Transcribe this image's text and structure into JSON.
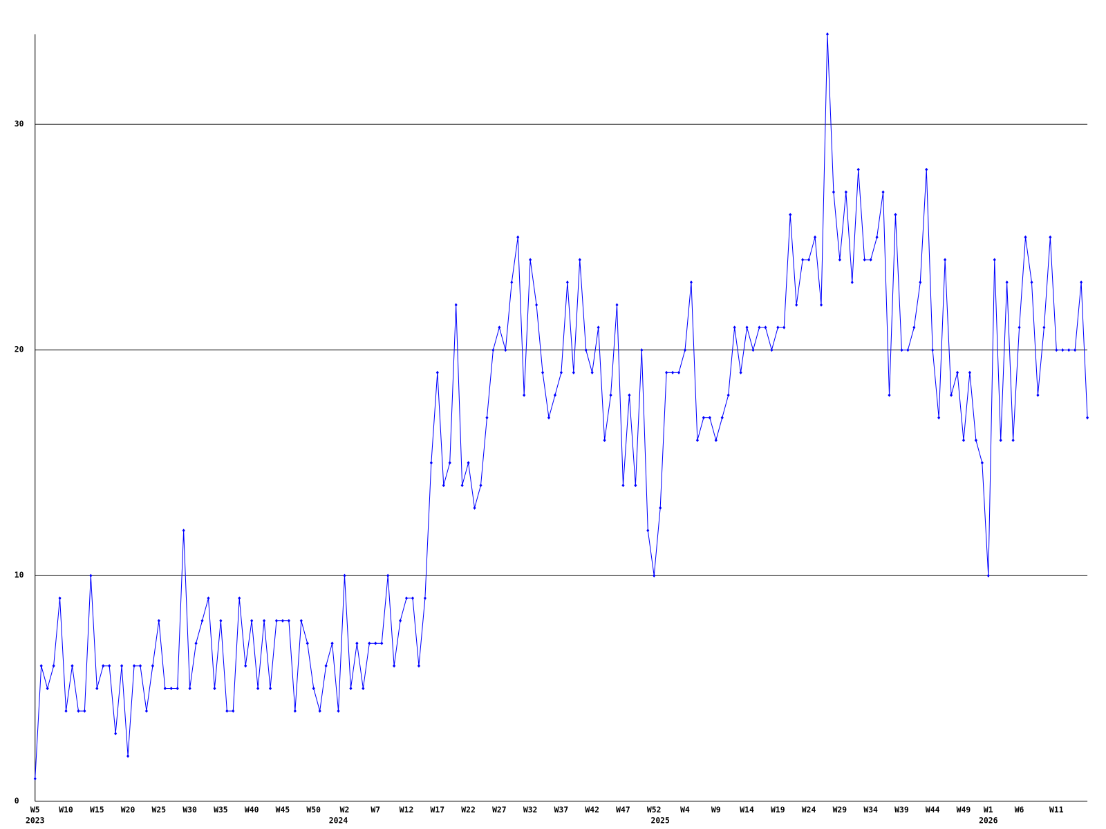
{
  "chart_data": {
    "type": "line",
    "categories": [
      "W5",
      null,
      null,
      null,
      null,
      "W10",
      null,
      null,
      null,
      null,
      "W15",
      null,
      null,
      null,
      null,
      "W20",
      null,
      null,
      null,
      null,
      "W25",
      null,
      null,
      null,
      null,
      "W30",
      null,
      null,
      null,
      null,
      "W35",
      null,
      null,
      null,
      null,
      "W40",
      null,
      null,
      null,
      null,
      "W45",
      null,
      null,
      null,
      null,
      "W50",
      null,
      null,
      null,
      null,
      "W2",
      null,
      null,
      null,
      null,
      "W7",
      null,
      null,
      null,
      null,
      "W12",
      null,
      null,
      null,
      null,
      "W17",
      null,
      null,
      null,
      null,
      "W22",
      null,
      null,
      null,
      null,
      "W27",
      null,
      null,
      null,
      null,
      "W32",
      null,
      null,
      null,
      null,
      "W37",
      null,
      null,
      null,
      null,
      "W42",
      null,
      null,
      null,
      null,
      "W47",
      null,
      null,
      null,
      null,
      "W52",
      null,
      null,
      null,
      null,
      "W4",
      null,
      null,
      null,
      null,
      "W9",
      null,
      null,
      null,
      null,
      "W14",
      null,
      null,
      null,
      null,
      "W19",
      null,
      null,
      null,
      null,
      "W24",
      null,
      null,
      null,
      null,
      "W29",
      null,
      null,
      null,
      null,
      "W34",
      null,
      null,
      null,
      null,
      "W39",
      null,
      null,
      null,
      null,
      "W44",
      null,
      null,
      null,
      null,
      "W49",
      null,
      null,
      null,
      "W1",
      null,
      null,
      null,
      null,
      "W6",
      null,
      null,
      null,
      null,
      null,
      "W11",
      null,
      null,
      null,
      null,
      null
    ],
    "year_labels": [
      "2023",
      null,
      null,
      null,
      null,
      null,
      null,
      null,
      null,
      null,
      null,
      null,
      null,
      null,
      null,
      null,
      null,
      null,
      null,
      null,
      null,
      null,
      null,
      null,
      null,
      null,
      null,
      null,
      null,
      null,
      null,
      null,
      null,
      null,
      null,
      null,
      null,
      null,
      null,
      null,
      null,
      null,
      null,
      null,
      null,
      null,
      null,
      null,
      null,
      "2024",
      null,
      null,
      null,
      null,
      null,
      null,
      null,
      null,
      null,
      null,
      null,
      null,
      null,
      null,
      null,
      null,
      null,
      null,
      null,
      null,
      null,
      null,
      null,
      null,
      null,
      null,
      null,
      null,
      null,
      null,
      null,
      null,
      null,
      null,
      null,
      null,
      null,
      null,
      null,
      null,
      null,
      null,
      null,
      null,
      null,
      null,
      null,
      null,
      null,
      null,
      null,
      "2025",
      null,
      null,
      null,
      null,
      null,
      null,
      null,
      null,
      null,
      null,
      null,
      null,
      null,
      null,
      null,
      null,
      null,
      null,
      null,
      null,
      null,
      null,
      null,
      null,
      null,
      null,
      null,
      null,
      null,
      null,
      null,
      null,
      null,
      null,
      null,
      null,
      null,
      null,
      null,
      null,
      null,
      null,
      null,
      null,
      null,
      null,
      null,
      null,
      null,
      null,
      null,
      null,
      "2026",
      null,
      null,
      null,
      null,
      null,
      null,
      null,
      null,
      null,
      null,
      null,
      null,
      null,
      null,
      null,
      null
    ],
    "series": [
      {
        "color": "#0000ff",
        "values": [
          1,
          6,
          5,
          6,
          9,
          4,
          6,
          4,
          4,
          10,
          5,
          6,
          6,
          3,
          6,
          2,
          6,
          6,
          4,
          6,
          8,
          5,
          5,
          5,
          12,
          5,
          7,
          8,
          9,
          5,
          8,
          4,
          4,
          9,
          6,
          8,
          5,
          8,
          5,
          8,
          8,
          8,
          4,
          8,
          7,
          5,
          4,
          6,
          7,
          4,
          10,
          5,
          7,
          5,
          7,
          7,
          7,
          10,
          6,
          8,
          9,
          9,
          6,
          9,
          15,
          19,
          14,
          15,
          22,
          14,
          15,
          13,
          14,
          17,
          20,
          21,
          20,
          23,
          25,
          18,
          24,
          22,
          19,
          17,
          18,
          19,
          23,
          19,
          24,
          20,
          19,
          21,
          16,
          18,
          22,
          14,
          18,
          14,
          20,
          12,
          10,
          13,
          19,
          19,
          19,
          20,
          23,
          16,
          17,
          17,
          16,
          17,
          18,
          21,
          19,
          21,
          20,
          21,
          21,
          20,
          21,
          21,
          26,
          22,
          24,
          24,
          25,
          22,
          34,
          27,
          24,
          27,
          23,
          28,
          24,
          24,
          25,
          27,
          18,
          26,
          20,
          20,
          21,
          23,
          28,
          20,
          17,
          24,
          18,
          19,
          16,
          19,
          16,
          15,
          10,
          24,
          16,
          23,
          16,
          21,
          25,
          23,
          18,
          21,
          25,
          20,
          20,
          20,
          20,
          23,
          17
        ]
      }
    ],
    "ylim": [
      0,
      34
    ],
    "yticks": [
      0,
      10,
      20,
      30
    ],
    "grid": true
  }
}
